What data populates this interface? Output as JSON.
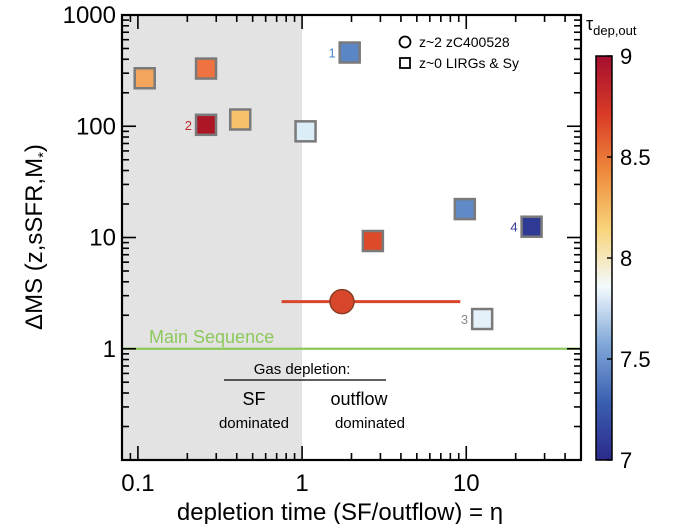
{
  "chart_data": {
    "type": "scatter",
    "xlabel": "depletion time (SF/outflow) = η",
    "ylabel": "ΔMS (z,sSFR,M",
    "ylabel_sub": "*",
    "ylabel_close": ")",
    "xscale": "log",
    "yscale": "log",
    "xlim": [
      0.08,
      50
    ],
    "ylim": [
      0.1,
      1000
    ],
    "x_ticks": [
      {
        "value": 0.1,
        "label": "0.1"
      },
      {
        "value": 1,
        "label": "1"
      },
      {
        "value": 10,
        "label": "10"
      }
    ],
    "y_ticks": [
      {
        "value": 1,
        "label": "1"
      },
      {
        "value": 10,
        "label": "10"
      },
      {
        "value": 100,
        "label": "100"
      },
      {
        "value": 1000,
        "label": "1000"
      }
    ],
    "shaded_region": {
      "x_from": 0.08,
      "x_to": 1,
      "color": "#e3e3e3"
    },
    "main_sequence": {
      "y": 1,
      "label": "Main Sequence",
      "color": "#8cc85a"
    },
    "annotations": {
      "gas_depletion": "Gas depletion:",
      "sf_line1": "SF",
      "sf_line2": "dominated",
      "outflow_line1": "outflow",
      "outflow_line2": "dominated"
    },
    "legend": {
      "position": "top-right",
      "items": [
        {
          "marker": "circle",
          "label": "z~2 zC400528"
        },
        {
          "marker": "square",
          "label": "z~0 LIRGs & Sy"
        }
      ]
    },
    "colorbar": {
      "title": "τ",
      "title_sub": "dep,out",
      "range": [
        7,
        9
      ],
      "ticks": [
        {
          "value": 9,
          "label": "9"
        },
        {
          "value": 8.5,
          "label": "8.5"
        },
        {
          "value": 8,
          "label": "8"
        },
        {
          "value": 7.5,
          "label": "7.5"
        },
        {
          "value": 7,
          "label": "7"
        }
      ],
      "colors": [
        "#2c2a8c",
        "#3b5fb0",
        "#7fa7d8",
        "#f3fafd",
        "#f8d47a",
        "#ee8a3c",
        "#d93a27",
        "#a50f2f"
      ]
    },
    "series": [
      {
        "marker": "square",
        "points": [
          {
            "x": 0.11,
            "y": 270,
            "tau": 8.55,
            "color": "#f3a55b",
            "label": ""
          },
          {
            "x": 0.26,
            "y": 330,
            "tau": 8.6,
            "color": "#ee7340",
            "label": ""
          },
          {
            "x": 0.26,
            "y": 103,
            "tau": 8.95,
            "color": "#ad1725",
            "label": "2",
            "label_color": "#c0282d"
          },
          {
            "x": 0.42,
            "y": 115,
            "tau": 8.3,
            "color": "#f7c06a",
            "label": ""
          },
          {
            "x": 1.05,
            "y": 90,
            "tau": 7.95,
            "color": "#dbeef7",
            "label": ""
          },
          {
            "x": 1.95,
            "y": 460,
            "tau": 7.5,
            "color": "#5a86c6",
            "label": "1",
            "label_color": "#4a86c8"
          },
          {
            "x": 2.7,
            "y": 9.3,
            "tau": 8.75,
            "color": "#dc4a2a",
            "label": ""
          },
          {
            "x": 9.8,
            "y": 18,
            "tau": 7.45,
            "color": "#5f8ac7",
            "label": ""
          },
          {
            "x": 12.5,
            "y": 1.85,
            "tau": 7.9,
            "color": "#e4f1f8",
            "label": "3",
            "label_color": "#888888"
          },
          {
            "x": 25,
            "y": 12.5,
            "tau": 7.15,
            "color": "#2e3a93",
            "label": "4",
            "label_color": "#2e3a93"
          }
        ]
      },
      {
        "marker": "circle",
        "points": [
          {
            "x": 1.75,
            "y": 2.65,
            "tau": 8.75,
            "color": "#d8472c",
            "xerr": [
              0.75,
              9.2
            ]
          }
        ]
      }
    ]
  }
}
